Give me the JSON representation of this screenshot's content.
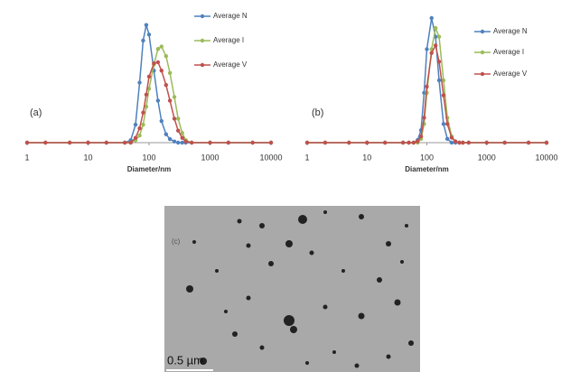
{
  "chart_data": [
    {
      "type": "line",
      "annotation": "(a)",
      "xlabel": "Diameter/nm",
      "log_x": true,
      "xlim": [
        1,
        10000
      ],
      "xticks": [
        1,
        10,
        100,
        1000,
        10000
      ],
      "ylim": [
        0,
        1
      ],
      "x": [
        1,
        2,
        5,
        10,
        20,
        40,
        50,
        60,
        70,
        80,
        90,
        100,
        120,
        140,
        160,
        190,
        220,
        260,
        300,
        350,
        400,
        500,
        1000,
        2000,
        5000,
        10000
      ],
      "series": [
        {
          "name": "Average N",
          "color": "#4f81bd",
          "values": [
            0,
            0,
            0,
            0,
            0,
            0,
            0.02,
            0.15,
            0.5,
            0.85,
            0.98,
            0.9,
            0.6,
            0.35,
            0.18,
            0.07,
            0.03,
            0.01,
            0,
            0,
            0,
            0,
            0,
            0,
            0,
            0
          ]
        },
        {
          "name": "Average I",
          "color": "#9bbb59",
          "values": [
            0,
            0,
            0,
            0,
            0,
            0,
            0,
            0.02,
            0.06,
            0.15,
            0.3,
            0.45,
            0.65,
            0.78,
            0.8,
            0.72,
            0.58,
            0.38,
            0.2,
            0.08,
            0.02,
            0,
            0,
            0,
            0,
            0
          ]
        },
        {
          "name": "Average V",
          "color": "#c0504d",
          "values": [
            0,
            0,
            0,
            0,
            0,
            0,
            0,
            0.04,
            0.12,
            0.25,
            0.4,
            0.55,
            0.66,
            0.67,
            0.6,
            0.48,
            0.35,
            0.2,
            0.1,
            0.04,
            0.01,
            0,
            0,
            0,
            0,
            0
          ]
        }
      ]
    },
    {
      "type": "line",
      "annotation": "(b)",
      "xlabel": "Diameter/nm",
      "log_x": true,
      "xlim": [
        1,
        10000
      ],
      "xticks": [
        1,
        10,
        100,
        1000,
        10000
      ],
      "ylim": [
        0,
        1
      ],
      "x": [
        1,
        2,
        5,
        10,
        20,
        40,
        50,
        60,
        70,
        80,
        90,
        100,
        120,
        140,
        160,
        190,
        220,
        260,
        300,
        350,
        400,
        500,
        1000,
        2000,
        5000,
        10000
      ],
      "series": [
        {
          "name": "Average N",
          "color": "#4f81bd",
          "values": [
            0,
            0,
            0,
            0,
            0,
            0,
            0,
            0,
            0.02,
            0.1,
            0.4,
            0.75,
            1,
            0.85,
            0.5,
            0.15,
            0.03,
            0,
            0,
            0,
            0,
            0,
            0,
            0,
            0,
            0
          ]
        },
        {
          "name": "Average I",
          "color": "#9bbb59",
          "values": [
            0,
            0,
            0,
            0,
            0,
            0,
            0,
            0,
            0,
            0.03,
            0.15,
            0.4,
            0.75,
            0.92,
            0.85,
            0.5,
            0.2,
            0.05,
            0.01,
            0,
            0,
            0,
            0,
            0,
            0,
            0
          ]
        },
        {
          "name": "Average V",
          "color": "#c0504d",
          "values": [
            0,
            0,
            0,
            0,
            0,
            0,
            0,
            0,
            0.01,
            0.05,
            0.2,
            0.45,
            0.72,
            0.78,
            0.65,
            0.38,
            0.15,
            0.04,
            0.01,
            0,
            0,
            0,
            0,
            0,
            0,
            0
          ]
        }
      ]
    }
  ],
  "image": {
    "label": "(c)",
    "scale_bar": "0.5 µm"
  }
}
